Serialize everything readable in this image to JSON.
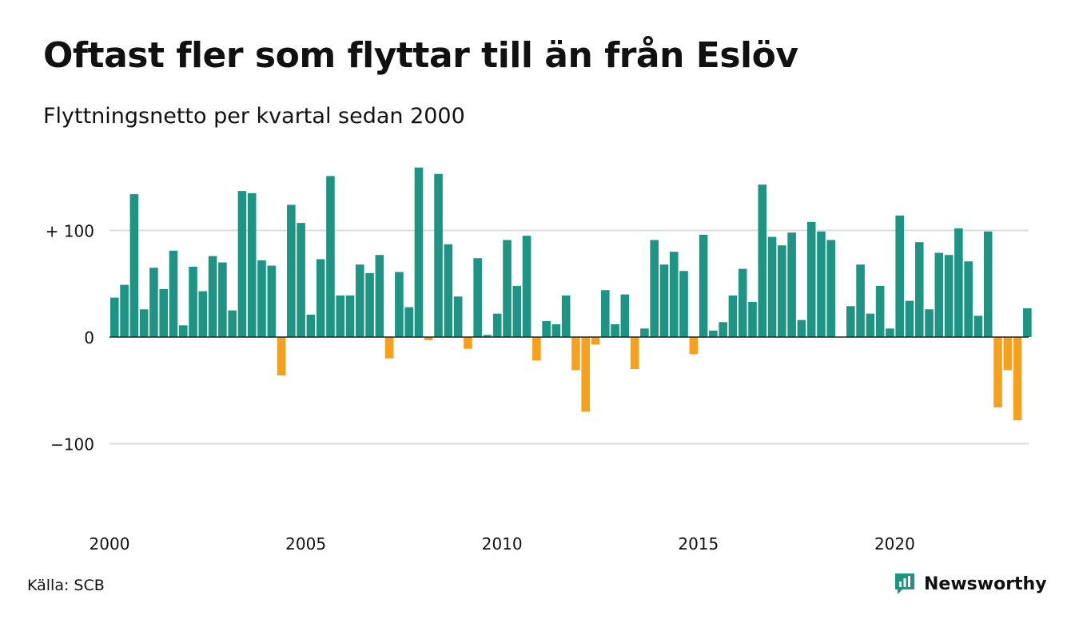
{
  "title": "Oftast fler som flyttar till än från Eslöv",
  "subtitle": "Flyttningsnetto per kvartal sedan 2000",
  "source": "Källa: SCB",
  "brand": {
    "name": "Newsworthy",
    "icon": "newsworthy-logo-icon"
  },
  "colors": {
    "positive": "#1e9485",
    "negative": "#f7a01b",
    "grid": "#dddddd",
    "zero_line": "#222222",
    "text": "#111111",
    "brand": "#1e9485"
  },
  "chart_data": {
    "type": "bar",
    "title": "Oftast fler som flyttar till än från Eslöv",
    "subtitle": "Flyttningsnetto per kvartal sedan 2000",
    "x_start": "2000-Q1",
    "x_ticks": [
      "2000",
      "2005",
      "2010",
      "2015",
      "2020"
    ],
    "y_ticks": [
      {
        "value": 100,
        "label": "+ 100"
      },
      {
        "value": 0,
        "label": "0"
      },
      {
        "value": -100,
        "label": "−100"
      }
    ],
    "ylim": [
      -150,
      160
    ],
    "grid": true,
    "legend": "none",
    "categories": [
      "2000 Q1",
      "2000 Q2",
      "2000 Q3",
      "2000 Q4",
      "2001 Q1",
      "2001 Q2",
      "2001 Q3",
      "2001 Q4",
      "2002 Q1",
      "2002 Q2",
      "2002 Q3",
      "2002 Q4",
      "2003 Q1",
      "2003 Q2",
      "2003 Q3",
      "2003 Q4",
      "2004 Q1",
      "2004 Q2",
      "2004 Q3",
      "2004 Q4",
      "2005 Q1",
      "2005 Q2",
      "2005 Q3",
      "2005 Q4",
      "2006 Q1",
      "2006 Q2",
      "2006 Q3",
      "2006 Q4",
      "2007 Q1",
      "2007 Q2",
      "2007 Q3",
      "2007 Q4",
      "2008 Q1",
      "2008 Q2",
      "2008 Q3",
      "2008 Q4",
      "2009 Q1",
      "2009 Q2",
      "2009 Q3",
      "2009 Q4",
      "2010 Q1",
      "2010 Q2",
      "2010 Q3",
      "2010 Q4",
      "2011 Q1",
      "2011 Q2",
      "2011 Q3",
      "2011 Q4",
      "2012 Q1",
      "2012 Q2",
      "2012 Q3",
      "2012 Q4",
      "2013 Q1",
      "2013 Q2",
      "2013 Q3",
      "2013 Q4",
      "2014 Q1",
      "2014 Q2",
      "2014 Q3",
      "2014 Q4",
      "2015 Q1",
      "2015 Q2",
      "2015 Q3",
      "2015 Q4",
      "2016 Q1",
      "2016 Q2",
      "2016 Q3",
      "2016 Q4",
      "2017 Q1",
      "2017 Q2",
      "2017 Q3",
      "2017 Q4",
      "2018 Q1",
      "2018 Q2",
      "2018 Q3",
      "2018 Q4",
      "2019 Q1",
      "2019 Q2",
      "2019 Q3",
      "2019 Q4",
      "2020 Q1",
      "2020 Q2",
      "2020 Q3",
      "2020 Q4",
      "2021 Q1",
      "2021 Q2",
      "2021 Q3",
      "2021 Q4",
      "2022 Q1",
      "2022 Q2",
      "2022 Q3",
      "2022 Q4",
      "2023 Q1",
      "2023 Q2"
    ],
    "values": [
      37,
      49,
      134,
      26,
      65,
      45,
      81,
      11,
      66,
      43,
      76,
      70,
      25,
      137,
      135,
      72,
      67,
      -36,
      124,
      107,
      21,
      73,
      151,
      39,
      39,
      68,
      60,
      77,
      -20,
      61,
      28,
      159,
      -3,
      153,
      87,
      38,
      -11,
      74,
      2,
      22,
      91,
      48,
      95,
      -22,
      15,
      12,
      39,
      -31,
      -70,
      -7,
      44,
      12,
      40,
      -30,
      8,
      91,
      68,
      80,
      62,
      -16,
      96,
      6,
      14,
      39,
      64,
      33,
      143,
      94,
      86,
      98,
      16,
      108,
      99,
      91,
      0,
      29,
      68,
      22,
      48,
      8,
      114,
      34,
      89,
      26,
      79,
      77,
      102,
      71,
      20,
      99,
      -66,
      -31,
      -78,
      27
    ]
  }
}
